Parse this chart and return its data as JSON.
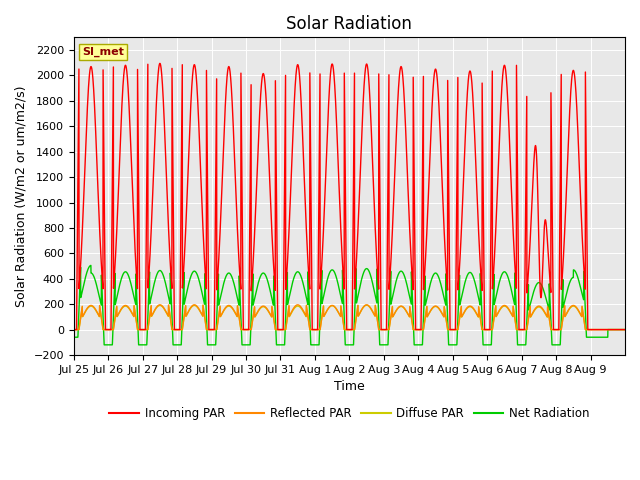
{
  "title": "Solar Radiation",
  "ylabel": "Solar Radiation (W/m2 or um/m2/s)",
  "xlabel": "Time",
  "ylim": [
    -200,
    2300
  ],
  "yticks": [
    -200,
    0,
    200,
    400,
    600,
    800,
    1000,
    1200,
    1400,
    1600,
    1800,
    2000,
    2200
  ],
  "bg_color": "#e8e8e8",
  "fig_color": "#ffffff",
  "num_days": 16,
  "day_labels": [
    "Jul 25",
    "Jul 26",
    "Jul 27",
    "Jul 28",
    "Jul 29",
    "Jul 30",
    "Jul 31",
    "Aug 1",
    "Aug 2",
    "Aug 3",
    "Aug 4",
    "Aug 5",
    "Aug 6",
    "Aug 7",
    "Aug 8",
    "Aug 9"
  ],
  "station_label": "SI_met",
  "station_label_color": "#8B0000",
  "station_box_facecolor": "#ffff99",
  "station_box_edgecolor": "#aaaa00",
  "series": [
    {
      "name": "Incoming PAR",
      "color": "#ff0000"
    },
    {
      "name": "Reflected PAR",
      "color": "#ff8800"
    },
    {
      "name": "Diffuse PAR",
      "color": "#cccc00"
    },
    {
      "name": "Net Radiation",
      "color": "#00cc00"
    }
  ],
  "title_fontsize": 12,
  "label_fontsize": 9,
  "tick_fontsize": 8,
  "linewidth": 1.0
}
